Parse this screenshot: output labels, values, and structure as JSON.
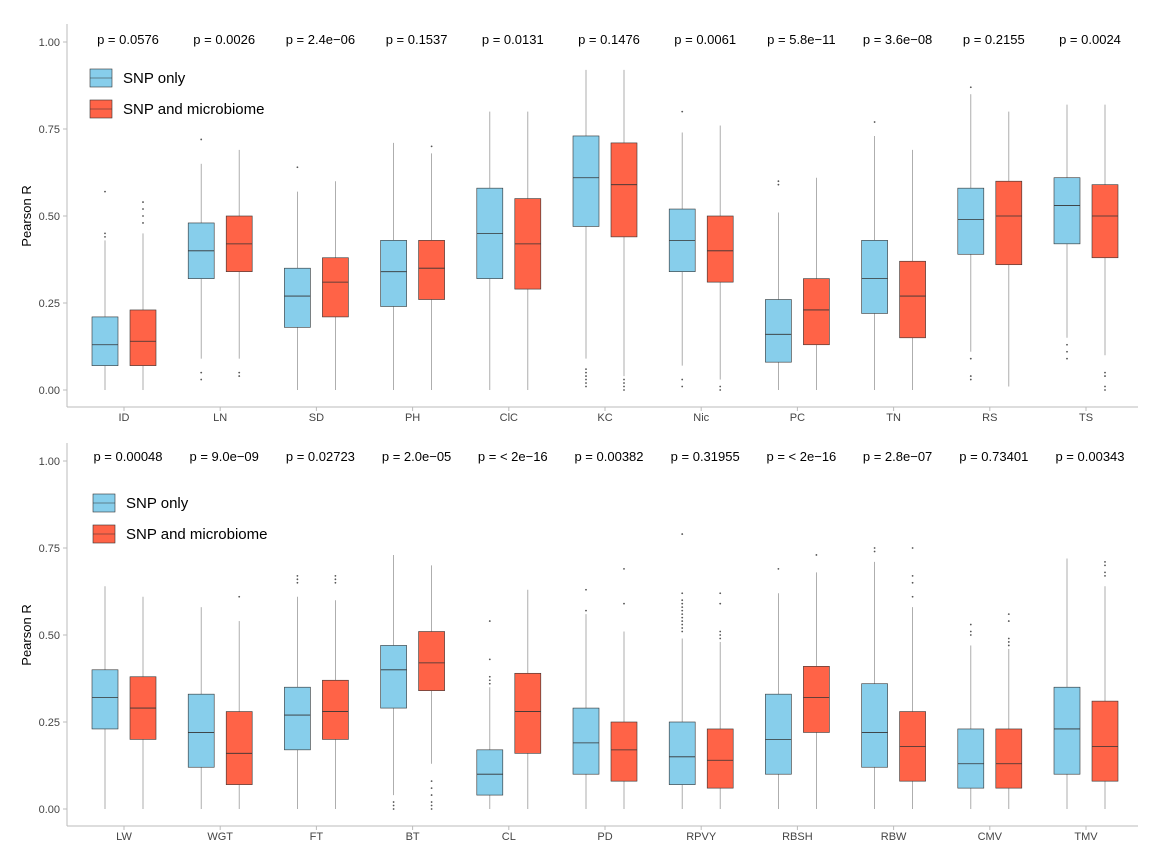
{
  "colors": {
    "snp": "#87CEEB",
    "micro": "#FF6347",
    "whisker": "#9a9a9a",
    "axis": "#bbbbbb"
  },
  "chart_data": [
    {
      "type": "boxplot",
      "ylabel": "Pearson R",
      "ylim": [
        0,
        1
      ],
      "yticks": [
        "0.00",
        "0.25",
        "0.50",
        "0.75",
        "1.00"
      ],
      "legend": [
        "SNP only",
        "SNP and microbiome"
      ],
      "legend_position": "top-left",
      "grid": false,
      "categories": [
        "ID",
        "LN",
        "SD",
        "PH",
        "ClC",
        "KC",
        "Nic",
        "PC",
        "TN",
        "RS",
        "TS"
      ],
      "pvalues": [
        "p = 0.0576",
        "p = 0.0026",
        "p = 2.4e−06",
        "p = 0.1537",
        "p = 0.0131",
        "p = 0.1476",
        "p = 0.0061",
        "p = 5.8e−11",
        "p = 3.6e−08",
        "p = 0.2155",
        "p = 0.0024"
      ],
      "series": [
        {
          "name": "SNP only",
          "boxes": [
            {
              "min": 0.0,
              "q1": 0.07,
              "median": 0.13,
              "q3": 0.21,
              "max": 0.43,
              "outliers": [
                0.44,
                0.45,
                0.57
              ]
            },
            {
              "min": 0.09,
              "q1": 0.32,
              "median": 0.4,
              "q3": 0.48,
              "max": 0.65,
              "outliers": [
                0.03,
                0.05,
                0.72
              ]
            },
            {
              "min": 0.0,
              "q1": 0.18,
              "median": 0.27,
              "q3": 0.35,
              "max": 0.57,
              "outliers": [
                0.64
              ]
            },
            {
              "min": 0.0,
              "q1": 0.24,
              "median": 0.34,
              "q3": 0.43,
              "max": 0.71,
              "outliers": []
            },
            {
              "min": 0.0,
              "q1": 0.32,
              "median": 0.45,
              "q3": 0.58,
              "max": 0.8,
              "outliers": []
            },
            {
              "min": 0.09,
              "q1": 0.47,
              "median": 0.61,
              "q3": 0.73,
              "max": 0.92,
              "outliers": [
                0.01,
                0.02,
                0.03,
                0.04,
                0.05,
                0.06
              ]
            },
            {
              "min": 0.07,
              "q1": 0.34,
              "median": 0.43,
              "q3": 0.52,
              "max": 0.74,
              "outliers": [
                0.01,
                0.03,
                0.8
              ]
            },
            {
              "min": 0.0,
              "q1": 0.08,
              "median": 0.16,
              "q3": 0.26,
              "max": 0.51,
              "outliers": [
                0.59,
                0.6
              ]
            },
            {
              "min": 0.0,
              "q1": 0.22,
              "median": 0.32,
              "q3": 0.43,
              "max": 0.73,
              "outliers": [
                0.77
              ]
            },
            {
              "min": 0.11,
              "q1": 0.39,
              "median": 0.49,
              "q3": 0.58,
              "max": 0.85,
              "outliers": [
                0.03,
                0.04,
                0.09,
                0.87
              ]
            },
            {
              "min": 0.15,
              "q1": 0.42,
              "median": 0.53,
              "q3": 0.61,
              "max": 0.82,
              "outliers": [
                0.09,
                0.11,
                0.13
              ]
            }
          ]
        },
        {
          "name": "SNP and microbiome",
          "boxes": [
            {
              "min": 0.0,
              "q1": 0.07,
              "median": 0.14,
              "q3": 0.23,
              "max": 0.45,
              "outliers": [
                0.48,
                0.5,
                0.52,
                0.54
              ]
            },
            {
              "min": 0.09,
              "q1": 0.34,
              "median": 0.42,
              "q3": 0.5,
              "max": 0.69,
              "outliers": [
                0.04,
                0.05
              ]
            },
            {
              "min": 0.0,
              "q1": 0.21,
              "median": 0.31,
              "q3": 0.38,
              "max": 0.6,
              "outliers": []
            },
            {
              "min": 0.0,
              "q1": 0.26,
              "median": 0.35,
              "q3": 0.43,
              "max": 0.68,
              "outliers": [
                0.7
              ]
            },
            {
              "min": 0.0,
              "q1": 0.29,
              "median": 0.42,
              "q3": 0.55,
              "max": 0.8,
              "outliers": []
            },
            {
              "min": 0.04,
              "q1": 0.44,
              "median": 0.59,
              "q3": 0.71,
              "max": 0.92,
              "outliers": [
                0.0,
                0.01,
                0.02,
                0.03
              ]
            },
            {
              "min": 0.03,
              "q1": 0.31,
              "median": 0.4,
              "q3": 0.5,
              "max": 0.76,
              "outliers": [
                0.0,
                0.01
              ]
            },
            {
              "min": 0.0,
              "q1": 0.13,
              "median": 0.23,
              "q3": 0.32,
              "max": 0.61,
              "outliers": []
            },
            {
              "min": 0.0,
              "q1": 0.15,
              "median": 0.27,
              "q3": 0.37,
              "max": 0.69,
              "outliers": []
            },
            {
              "min": 0.01,
              "q1": 0.36,
              "median": 0.5,
              "q3": 0.6,
              "max": 0.8,
              "outliers": []
            },
            {
              "min": 0.1,
              "q1": 0.38,
              "median": 0.5,
              "q3": 0.59,
              "max": 0.82,
              "outliers": [
                0.0,
                0.01,
                0.04,
                0.05
              ]
            }
          ]
        }
      ]
    },
    {
      "type": "boxplot",
      "ylabel": "Pearson R",
      "ylim": [
        0,
        1
      ],
      "yticks": [
        "0.00",
        "0.25",
        "0.50",
        "0.75",
        "1.00"
      ],
      "legend": [
        "SNP only",
        "SNP and microbiome"
      ],
      "legend_position": "top-left",
      "grid": false,
      "categories": [
        "LW",
        "WGT",
        "FT",
        "BT",
        "CL",
        "PD",
        "RPVY",
        "RBSH",
        "RBW",
        "CMV",
        "TMV"
      ],
      "pvalues": [
        "p = 0.00048",
        "p = 9.0e−09",
        "p = 0.02723",
        "p = 2.0e−05",
        "p = < 2e−16",
        "p = 0.00382",
        "p = 0.31955",
        "p = < 2e−16",
        "p = 2.8e−07",
        "p = 0.73401",
        "p = 0.00343"
      ],
      "series": [
        {
          "name": "SNP only",
          "boxes": [
            {
              "min": 0.0,
              "q1": 0.23,
              "median": 0.32,
              "q3": 0.4,
              "max": 0.64,
              "outliers": []
            },
            {
              "min": 0.0,
              "q1": 0.12,
              "median": 0.22,
              "q3": 0.33,
              "max": 0.58,
              "outliers": []
            },
            {
              "min": 0.0,
              "q1": 0.17,
              "median": 0.27,
              "q3": 0.35,
              "max": 0.61,
              "outliers": [
                0.65,
                0.66,
                0.67
              ]
            },
            {
              "min": 0.04,
              "q1": 0.29,
              "median": 0.4,
              "q3": 0.47,
              "max": 0.73,
              "outliers": [
                0.0,
                0.01,
                0.02
              ]
            },
            {
              "min": 0.0,
              "q1": 0.04,
              "median": 0.1,
              "q3": 0.17,
              "max": 0.35,
              "outliers": [
                0.36,
                0.37,
                0.38,
                0.43,
                0.54
              ]
            },
            {
              "min": 0.0,
              "q1": 0.1,
              "median": 0.19,
              "q3": 0.29,
              "max": 0.56,
              "outliers": [
                0.57,
                0.63
              ]
            },
            {
              "min": 0.0,
              "q1": 0.07,
              "median": 0.15,
              "q3": 0.25,
              "max": 0.49,
              "outliers": [
                0.51,
                0.52,
                0.53,
                0.54,
                0.55,
                0.56,
                0.57,
                0.58,
                0.59,
                0.6,
                0.62,
                0.79
              ]
            },
            {
              "min": 0.0,
              "q1": 0.1,
              "median": 0.2,
              "q3": 0.33,
              "max": 0.62,
              "outliers": [
                0.69
              ]
            },
            {
              "min": 0.0,
              "q1": 0.12,
              "median": 0.22,
              "q3": 0.36,
              "max": 0.71,
              "outliers": [
                0.74,
                0.75
              ]
            },
            {
              "min": 0.0,
              "q1": 0.06,
              "median": 0.13,
              "q3": 0.23,
              "max": 0.47,
              "outliers": [
                0.5,
                0.51,
                0.53
              ]
            },
            {
              "min": 0.0,
              "q1": 0.1,
              "median": 0.23,
              "q3": 0.35,
              "max": 0.72,
              "outliers": []
            }
          ]
        },
        {
          "name": "SNP and microbiome",
          "boxes": [
            {
              "min": 0.0,
              "q1": 0.2,
              "median": 0.29,
              "q3": 0.38,
              "max": 0.61,
              "outliers": []
            },
            {
              "min": 0.0,
              "q1": 0.07,
              "median": 0.16,
              "q3": 0.28,
              "max": 0.54,
              "outliers": [
                0.61
              ]
            },
            {
              "min": 0.0,
              "q1": 0.2,
              "median": 0.28,
              "q3": 0.37,
              "max": 0.6,
              "outliers": [
                0.65,
                0.66,
                0.67
              ]
            },
            {
              "min": 0.13,
              "q1": 0.34,
              "median": 0.42,
              "q3": 0.51,
              "max": 0.7,
              "outliers": [
                0.0,
                0.01,
                0.02,
                0.04,
                0.06,
                0.08
              ]
            },
            {
              "min": 0.0,
              "q1": 0.16,
              "median": 0.28,
              "q3": 0.39,
              "max": 0.63,
              "outliers": []
            },
            {
              "min": 0.0,
              "q1": 0.08,
              "median": 0.17,
              "q3": 0.25,
              "max": 0.51,
              "outliers": [
                0.59,
                0.69
              ]
            },
            {
              "min": 0.0,
              "q1": 0.06,
              "median": 0.14,
              "q3": 0.23,
              "max": 0.48,
              "outliers": [
                0.49,
                0.5,
                0.51,
                0.59,
                0.62
              ]
            },
            {
              "min": 0.0,
              "q1": 0.22,
              "median": 0.32,
              "q3": 0.41,
              "max": 0.68,
              "outliers": [
                0.73
              ]
            },
            {
              "min": 0.0,
              "q1": 0.08,
              "median": 0.18,
              "q3": 0.28,
              "max": 0.58,
              "outliers": [
                0.61,
                0.65,
                0.67,
                0.75
              ]
            },
            {
              "min": 0.0,
              "q1": 0.06,
              "median": 0.13,
              "q3": 0.23,
              "max": 0.46,
              "outliers": [
                0.47,
                0.48,
                0.49,
                0.54,
                0.56
              ]
            },
            {
              "min": 0.0,
              "q1": 0.08,
              "median": 0.18,
              "q3": 0.31,
              "max": 0.64,
              "outliers": [
                0.67,
                0.68,
                0.7,
                0.71
              ]
            }
          ]
        }
      ]
    }
  ]
}
